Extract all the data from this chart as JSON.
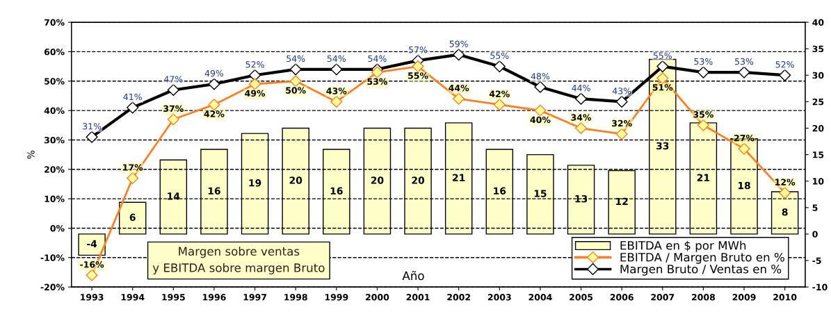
{
  "chart_data": {
    "type": "bar",
    "categories": [
      "1993",
      "1994",
      "1995",
      "1996",
      "1997",
      "1998",
      "1999",
      "2000",
      "2001",
      "2002",
      "2003",
      "2004",
      "2005",
      "2006",
      "2007",
      "2008",
      "2009",
      "2010"
    ],
    "series": [
      {
        "name": "EBITDA en $ por MWh",
        "axis": "y2",
        "color": "#ffffc8",
        "values": [
          -4,
          6,
          14,
          16,
          19,
          20,
          16,
          20,
          20,
          21,
          16,
          15,
          13,
          12,
          33,
          21,
          18,
          8
        ],
        "value_labels": [
          "-4",
          "6",
          "14",
          "16",
          "19",
          "20",
          "16",
          "20",
          "20",
          "21",
          "16",
          "15",
          "13",
          "12",
          "33",
          "21",
          "18",
          "8"
        ]
      },
      {
        "name": "EBITDA / Margen Bruto en %",
        "type": "line",
        "color": "#ff7f1e",
        "marker": "diamond",
        "values": [
          -16,
          17,
          37,
          42,
          49,
          50,
          43,
          53,
          55,
          44,
          42,
          40,
          34,
          32,
          51,
          35,
          27,
          12
        ],
        "value_labels": [
          "-16%",
          "17%",
          "37%",
          "42%",
          "49%",
          "50%",
          "43%",
          "53%",
          "55%",
          "44%",
          "42%",
          "40%",
          "34%",
          "32%",
          "51%",
          "35%",
          "27%",
          "12%"
        ]
      },
      {
        "name": "Margen Bruto / Ventas en %",
        "type": "line",
        "color": "#000000",
        "marker": "diamond",
        "values": [
          31,
          41,
          47,
          49,
          52,
          54,
          54,
          54,
          57,
          59,
          55,
          48,
          44,
          43,
          55,
          53,
          53,
          52
        ],
        "value_labels": [
          "31%",
          "41%",
          "47%",
          "49%",
          "52%",
          "54%",
          "54%",
          "54%",
          "57%",
          "59%",
          "55%",
          "48%",
          "44%",
          "43%",
          "55%",
          "53%",
          "53%",
          "52%"
        ]
      }
    ],
    "xlabel": "Año",
    "ylabel": "%",
    "ylim": [
      -20,
      70
    ],
    "yticks": [
      {
        "value": -20,
        "label": "-20%"
      },
      {
        "value": -10,
        "label": "-10%"
      },
      {
        "value": 0,
        "label": "0%"
      },
      {
        "value": 10,
        "label": "10%"
      },
      {
        "value": 20,
        "label": "20%"
      },
      {
        "value": 30,
        "label": "30%"
      },
      {
        "value": 40,
        "label": "40%"
      },
      {
        "value": 50,
        "label": "50%"
      },
      {
        "value": 60,
        "label": "60%"
      },
      {
        "value": 70,
        "label": "70%"
      }
    ],
    "y2lim": [
      -10,
      40
    ],
    "y2ticks": [
      -10,
      -5,
      0,
      5,
      10,
      15,
      20,
      25,
      30,
      35,
      40
    ],
    "grid": "y",
    "legend": "bottom right",
    "line_style": "solid",
    "annotations": [
      "Margen sobre ventas\ny EBITDA sobre margen Bruto"
    ]
  }
}
